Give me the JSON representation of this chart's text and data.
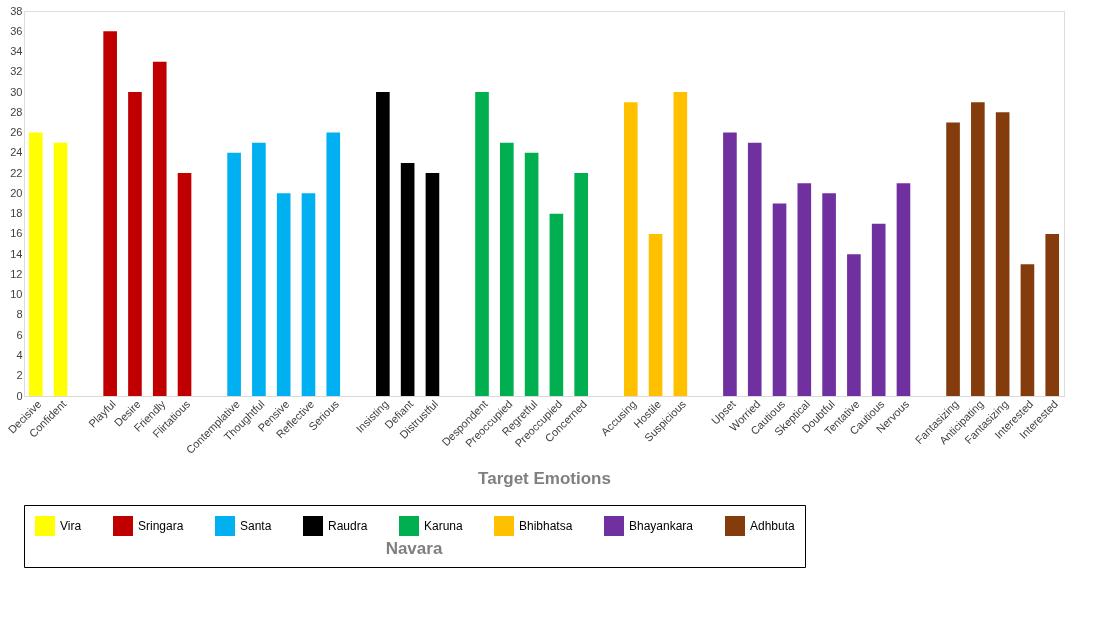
{
  "chart_data": {
    "type": "bar",
    "xlabel": "Target Emotions",
    "legend_title": "Navara",
    "legend": "bottom",
    "grid": false,
    "categories": [
      "Decisive",
      "Confident",
      null,
      "Playful",
      "Desire",
      "Friendly",
      "Flirtatious",
      null,
      "Contemplative",
      "Thoughtful",
      "Pensive",
      "Reflective",
      "Serious",
      null,
      "Insisting",
      "Defiant",
      "Distrustful",
      null,
      "Despondent",
      "Preoccupied",
      "Regretful",
      "Preoccupied",
      "Concerned",
      null,
      "Accusing",
      "Hostile",
      "Suspicious",
      null,
      "Upset",
      "Worried",
      "Cautious",
      "Skeptical",
      "Doubtful",
      "Tentative",
      "Cautious",
      "Nervous",
      null,
      "Fantasizing",
      "Anticipating",
      "Fantasizing",
      "Interested",
      "Interested"
    ],
    "ylim": [
      0,
      38
    ],
    "yticks": [
      0,
      2,
      4,
      6,
      8,
      10,
      12,
      14,
      16,
      18,
      20,
      22,
      24,
      26,
      28,
      30,
      32,
      34,
      36,
      38
    ],
    "series": [
      {
        "name": "Vira",
        "color": "#ffff00",
        "values": [
          26,
          25,
          null,
          null,
          null,
          null,
          null,
          null,
          null,
          null,
          null,
          null,
          null,
          null,
          null,
          null,
          null,
          null,
          null,
          null,
          null,
          null,
          null,
          null,
          null,
          null,
          null,
          null,
          null,
          null,
          null,
          null,
          null,
          null,
          null,
          null,
          null,
          null,
          null,
          null,
          null,
          null
        ]
      },
      {
        "name": "Sringara",
        "color": "#c00000",
        "values": [
          null,
          null,
          null,
          36,
          30,
          33,
          22,
          null,
          null,
          null,
          null,
          null,
          null,
          null,
          null,
          null,
          null,
          null,
          null,
          null,
          null,
          null,
          null,
          null,
          null,
          null,
          null,
          null,
          null,
          null,
          null,
          null,
          null,
          null,
          null,
          null,
          null,
          null,
          null,
          null,
          null,
          null
        ]
      },
      {
        "name": "Santa",
        "color": "#00b0f0",
        "values": [
          null,
          null,
          null,
          null,
          null,
          null,
          null,
          null,
          24,
          25,
          20,
          20,
          26,
          null,
          null,
          null,
          null,
          null,
          null,
          null,
          null,
          null,
          null,
          null,
          null,
          null,
          null,
          null,
          null,
          null,
          null,
          null,
          null,
          null,
          null,
          null,
          null,
          null,
          null,
          null,
          null,
          null
        ]
      },
      {
        "name": "Raudra",
        "color": "#000000",
        "values": [
          null,
          null,
          null,
          null,
          null,
          null,
          null,
          null,
          null,
          null,
          null,
          null,
          null,
          null,
          30,
          23,
          22,
          null,
          null,
          null,
          null,
          null,
          null,
          null,
          null,
          null,
          null,
          null,
          null,
          null,
          null,
          null,
          null,
          null,
          null,
          null,
          null,
          null,
          null,
          null,
          null,
          null
        ]
      },
      {
        "name": "Karuna",
        "color": "#00b050",
        "values": [
          null,
          null,
          null,
          null,
          null,
          null,
          null,
          null,
          null,
          null,
          null,
          null,
          null,
          null,
          null,
          null,
          null,
          null,
          30,
          25,
          24,
          18,
          22,
          null,
          null,
          null,
          null,
          null,
          null,
          null,
          null,
          null,
          null,
          null,
          null,
          null,
          null,
          null,
          null,
          null,
          null,
          null
        ]
      },
      {
        "name": "Bhibhatsa",
        "color": "#ffc000",
        "values": [
          null,
          null,
          null,
          null,
          null,
          null,
          null,
          null,
          null,
          null,
          null,
          null,
          null,
          null,
          null,
          null,
          null,
          null,
          null,
          null,
          null,
          null,
          null,
          null,
          29,
          16,
          30,
          null,
          null,
          null,
          null,
          null,
          null,
          null,
          null,
          null,
          null,
          null,
          null,
          null,
          null,
          null
        ]
      },
      {
        "name": "Bhayankara",
        "color": "#7030a0",
        "values": [
          null,
          null,
          null,
          null,
          null,
          null,
          null,
          null,
          null,
          null,
          null,
          null,
          null,
          null,
          null,
          null,
          null,
          null,
          null,
          null,
          null,
          null,
          null,
          null,
          null,
          null,
          null,
          null,
          26,
          25,
          19,
          21,
          20,
          14,
          17,
          21,
          null,
          null,
          null,
          null,
          null,
          null
        ]
      },
      {
        "name": "Adhbuta",
        "color": "#843c0c",
        "values": [
          null,
          null,
          null,
          null,
          null,
          null,
          null,
          null,
          null,
          null,
          null,
          null,
          null,
          null,
          null,
          null,
          null,
          null,
          null,
          null,
          null,
          null,
          null,
          null,
          null,
          null,
          null,
          null,
          null,
          null,
          null,
          null,
          null,
          null,
          null,
          null,
          null,
          27,
          29,
          28,
          13,
          16
        ]
      }
    ]
  }
}
